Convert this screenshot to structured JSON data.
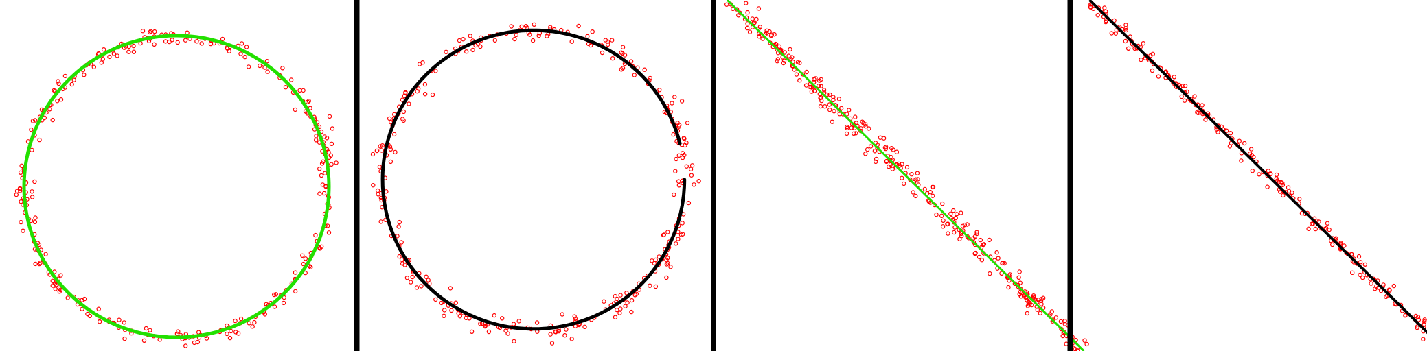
{
  "chart_data": [
    {
      "type": "scatter",
      "shape": "circle",
      "fit_color": "#22e000",
      "point_color": "#ff0000",
      "truth": {
        "cx": 0,
        "cy": 0,
        "r": 1.0
      },
      "fit": {
        "cx": 0,
        "cy": 0,
        "r": 1.0,
        "start_angle_deg": 0,
        "end_angle_deg": 360
      },
      "noise": 0.03,
      "point_count": 320,
      "seed": 11
    },
    {
      "type": "scatter",
      "shape": "circle",
      "fit_color": "#000000",
      "point_color": "#ff0000",
      "truth": {
        "cx": 0,
        "cy": 0,
        "r": 1.0
      },
      "fit": {
        "cx": -0.005,
        "cy": 0.0,
        "r": 0.99,
        "start_angle_deg": 14,
        "end_angle_deg": 360
      },
      "noise": 0.035,
      "point_count": 320,
      "seed": 23
    },
    {
      "type": "scatter",
      "shape": "line",
      "fit_color": "#22e000",
      "point_color": "#ff0000",
      "truth": {
        "x0": 0.0,
        "y0": 1.0,
        "x1": 1.0,
        "y1": 0.0
      },
      "fit": {
        "x0": 0.0,
        "y0": 1.0,
        "x1": 1.0,
        "y1": 0.0
      },
      "noise": 0.015,
      "point_count": 320,
      "seed": 37
    },
    {
      "type": "scatter",
      "shape": "line",
      "fit_color": "#000000",
      "point_color": "#ff0000",
      "truth": {
        "x0": 0.0,
        "y0": 1.0,
        "x1": 1.0,
        "y1": 0.0
      },
      "fit": {
        "x0": 0.0,
        "y0": 1.0,
        "x1": 1.0,
        "y1": 0.0
      },
      "noise": 0.01,
      "point_count": 240,
      "seed": 53
    }
  ],
  "separator_color": "#000000"
}
